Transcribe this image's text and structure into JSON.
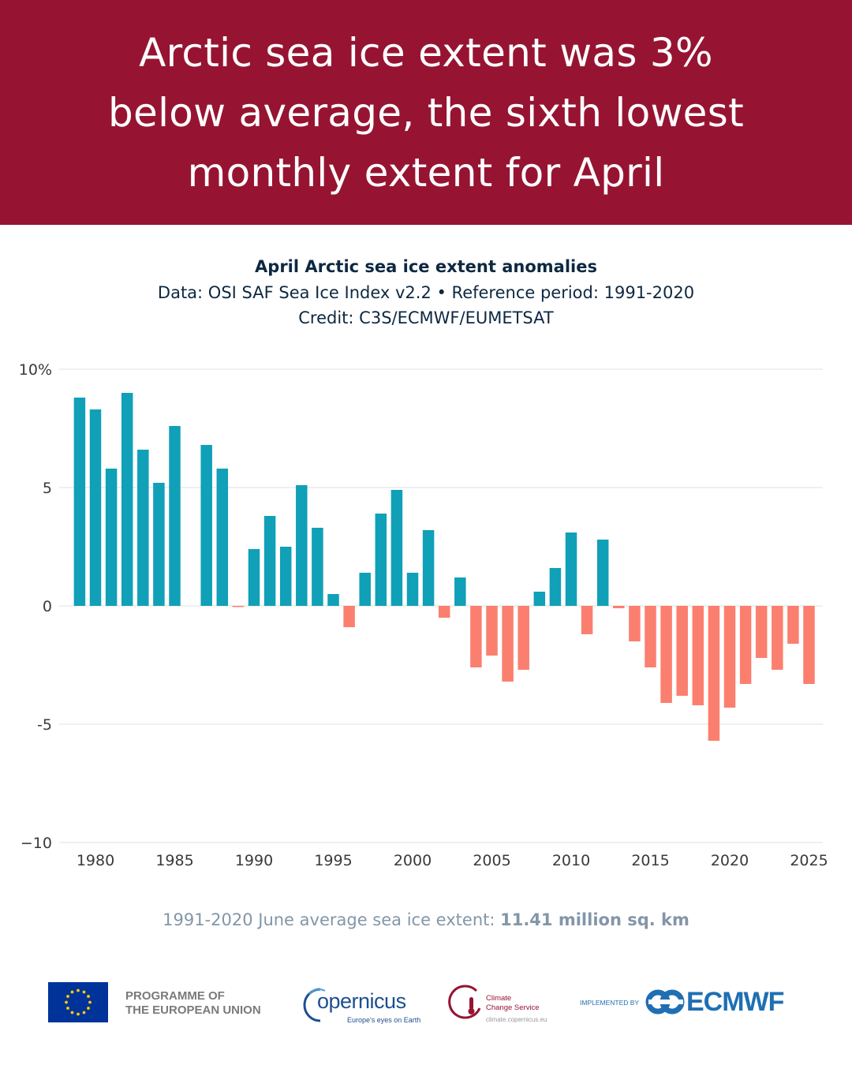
{
  "headline": {
    "line1": "Arctic sea ice extent was 3%",
    "line2": "below average, the sixth lowest",
    "line3": "monthly extent for April"
  },
  "chart_header": {
    "title": "April Arctic sea ice extent anomalies",
    "data_line": "Data: OSI SAF Sea Ice Index v2.2 • Reference period: 1991-2020",
    "credit_line": "Credit: C3S/ECMWF/EUMETSAT"
  },
  "chart_data": {
    "type": "bar",
    "title": "April Arctic sea ice extent anomalies",
    "xlabel": "",
    "ylabel": "",
    "ylim": [
      -10,
      10
    ],
    "yticks": [
      10,
      5,
      0,
      -5,
      -10
    ],
    "ytick_labels": [
      "10%",
      "5",
      "0",
      "-5",
      "−10"
    ],
    "xticks": [
      1980,
      1985,
      1990,
      1995,
      2000,
      2005,
      2010,
      2015,
      2020,
      2025
    ],
    "grid": true,
    "colors": {
      "positive": "#10a0b8",
      "negative": "#fb7f6f",
      "grid": "#e2e6ea",
      "tick_text": "#3a3a3a"
    },
    "x": [
      1979,
      1980,
      1981,
      1982,
      1983,
      1984,
      1985,
      1986,
      1987,
      1988,
      1989,
      1990,
      1991,
      1992,
      1993,
      1994,
      1995,
      1996,
      1997,
      1998,
      1999,
      2000,
      2001,
      2002,
      2003,
      2004,
      2005,
      2006,
      2007,
      2008,
      2009,
      2010,
      2011,
      2012,
      2013,
      2014,
      2015,
      2016,
      2017,
      2018,
      2019,
      2020,
      2021,
      2022,
      2023,
      2024,
      2025
    ],
    "values": [
      8.8,
      8.3,
      5.8,
      9.0,
      6.6,
      5.2,
      7.6,
      null,
      6.8,
      5.8,
      -0.05,
      2.4,
      3.8,
      2.5,
      5.1,
      3.3,
      0.5,
      -0.9,
      1.4,
      3.9,
      4.9,
      1.4,
      3.2,
      -0.5,
      1.2,
      -2.6,
      -2.1,
      -3.2,
      -2.7,
      0.6,
      1.6,
      3.1,
      -1.2,
      2.8,
      -0.1,
      -1.5,
      -2.6,
      -4.1,
      -3.8,
      -4.2,
      -5.7,
      -4.3,
      -3.3,
      -2.2,
      -2.7,
      -1.6,
      -3.3
    ]
  },
  "footer_note": {
    "prefix": "1991-2020 June average sea ice extent: ",
    "value": "11.41 million sq. km"
  },
  "logos": {
    "eu_line1": "PROGRAMME OF",
    "eu_line2": "THE EUROPEAN UNION",
    "copernicus_word": "opernicus",
    "copernicus_tagline": "Europe's eyes on Earth",
    "c3s_line1": "Climate",
    "c3s_line2": "Change Service",
    "c3s_url": "climate.copernicus.eu",
    "implemented_by": "IMPLEMENTED BY",
    "ecmwf_word": "ECMWF",
    "eu_blue": "#003399",
    "eu_yellow": "#ffcc00",
    "copernicus_blue": "#1d4f91",
    "c3s_red": "#961432",
    "ecmwf_blue": "#1f6fb2"
  }
}
